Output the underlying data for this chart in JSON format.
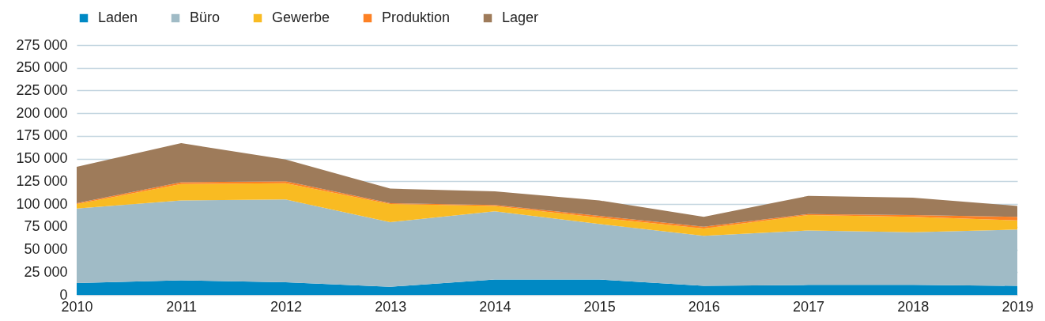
{
  "chart_data": {
    "type": "area",
    "stacked": true,
    "x": [
      2010,
      2011,
      2012,
      2013,
      2014,
      2015,
      2016,
      2017,
      2018,
      2019
    ],
    "series": [
      {
        "name": "Laden",
        "color": "#0089c4",
        "values": [
          13000,
          16000,
          14000,
          9000,
          17000,
          17000,
          10000,
          11000,
          11000,
          10000
        ]
      },
      {
        "name": "Büro",
        "color": "#a0bbc6",
        "values": [
          82000,
          88000,
          91000,
          71000,
          75000,
          61000,
          55000,
          60000,
          58000,
          62000
        ]
      },
      {
        "name": "Gewerbe",
        "color": "#f9bb22",
        "values": [
          5000,
          18000,
          18000,
          20000,
          6000,
          7000,
          8000,
          17000,
          17000,
          10000
        ]
      },
      {
        "name": "Produktion",
        "color": "#fd8124",
        "values": [
          1000,
          2000,
          2000,
          1000,
          1000,
          2000,
          2000,
          1000,
          2000,
          4000
        ]
      },
      {
        "name": "Lager",
        "color": "#9e7b5a",
        "values": [
          40000,
          43000,
          24000,
          16000,
          15000,
          17000,
          11000,
          20000,
          19000,
          12000
        ]
      }
    ],
    "xlim": [
      2010,
      2019
    ],
    "xticks": [
      2010,
      2011,
      2012,
      2013,
      2014,
      2015,
      2016,
      2017,
      2018,
      2019
    ],
    "ylim": [
      0,
      275000
    ],
    "yticks": [
      {
        "value": 0,
        "label": "0"
      },
      {
        "value": 25000,
        "label": "25 000"
      },
      {
        "value": 50000,
        "label": "50 000"
      },
      {
        "value": 75000,
        "label": "75 000"
      },
      {
        "value": 100000,
        "label": "100 000"
      },
      {
        "value": 125000,
        "label": "125 000"
      },
      {
        "value": 150000,
        "label": "150 000"
      },
      {
        "value": 175000,
        "label": "175 000"
      },
      {
        "value": 200000,
        "label": "200 000"
      },
      {
        "value": 225000,
        "label": "225 000"
      },
      {
        "value": 250000,
        "label": "250 000"
      },
      {
        "value": 275000,
        "label": "275 000"
      }
    ],
    "grid": "y",
    "legend": "top left"
  }
}
